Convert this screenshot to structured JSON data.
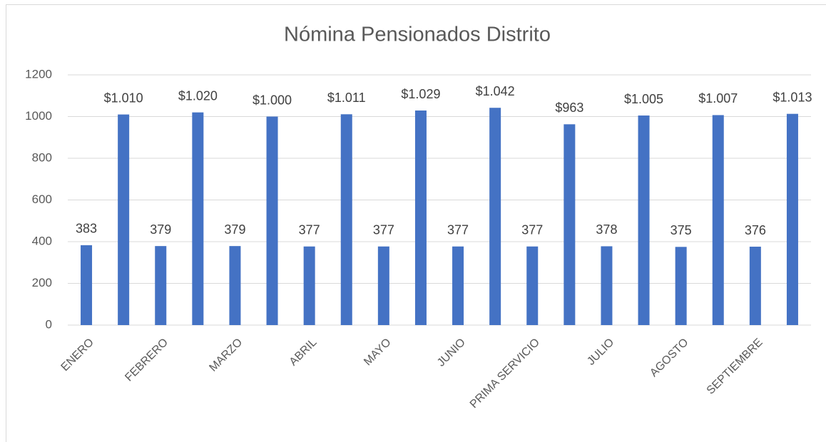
{
  "chart_data": {
    "type": "bar",
    "title": "Nómina Pensionados Distrito",
    "categories": [
      "ENERO",
      null,
      "FEBRERO",
      null,
      "MARZO",
      null,
      "ABRIL",
      null,
      "MAYO",
      null,
      "JUNIO",
      null,
      "PRIMA SERVICIO",
      null,
      "JULIO",
      null,
      "AGOSTO",
      null,
      "SEPTIEMBRE",
      null
    ],
    "values": [
      383,
      1010,
      379,
      1020,
      379,
      1000,
      377,
      1011,
      377,
      1029,
      377,
      1042,
      377,
      963,
      378,
      1005,
      375,
      1007,
      376,
      1013
    ],
    "value_labels": [
      "383",
      "$1.010",
      "379",
      "$1.020",
      "379",
      "$1.000",
      "377",
      "$1.011",
      "377",
      "$1.029",
      "377",
      "$1.042",
      "377",
      "$963",
      "378",
      "$1.005",
      "375",
      "$1.007",
      "376",
      "$1.013"
    ],
    "color": "#4472c4",
    "ylim": [
      0,
      1200
    ],
    "yticks": [
      0,
      200,
      400,
      600,
      800,
      1000,
      1200
    ],
    "grid": true
  }
}
